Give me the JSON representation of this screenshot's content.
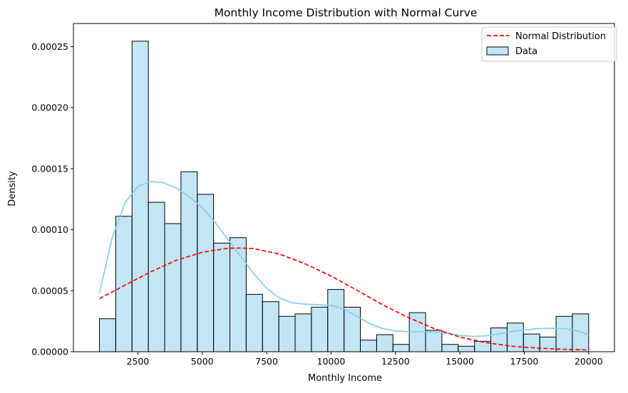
{
  "chart_data": {
    "type": "bar",
    "title": "Monthly Income Distribution with Normal Curve",
    "xlabel": "Monthly Income",
    "ylabel": "Density",
    "xlim": [
      0,
      21000
    ],
    "ylim": [
      0,
      0.000269
    ],
    "x_ticks": [
      2500,
      5000,
      7500,
      10000,
      12500,
      15000,
      17500,
      20000
    ],
    "y_ticks": [
      0,
      5e-05,
      0.0001,
      0.00015,
      0.0002,
      0.00025
    ],
    "y_tick_labels": [
      "0.00000",
      "0.00005",
      "0.00010",
      "0.00015",
      "0.00020",
      "0.00025"
    ],
    "grid": false,
    "legend_position": "top-right",
    "histogram": {
      "name": "Data",
      "color": "#87ceeb",
      "edge_color": "#000000",
      "bin_start": 1009,
      "bin_width": 633,
      "values": [
        2.7e-05,
        0.000111,
        0.0002545,
        0.0001225,
        0.000105,
        0.0001475,
        0.000129,
        8.9e-05,
        9.35e-05,
        4.7e-05,
        4.1e-05,
        2.9e-05,
        3.1e-05,
        3.65e-05,
        5.1e-05,
        3.65e-05,
        9.5e-06,
        1.4e-05,
        6e-06,
        3.2e-05,
        1.75e-05,
        6e-06,
        4.5e-06,
        8.5e-06,
        1.95e-05,
        2.35e-05,
        1.45e-05,
        1.2e-05,
        2.9e-05,
        3.1e-05
      ]
    },
    "kde": {
      "color": "#87ceeb",
      "x": [
        1009,
        1500,
        2000,
        2500,
        3000,
        3500,
        4000,
        4500,
        5000,
        5500,
        6000,
        6500,
        7000,
        7500,
        8000,
        8500,
        9000,
        9500,
        10000,
        10500,
        11000,
        11500,
        12000,
        12500,
        13000,
        13500,
        14000,
        14500,
        15000,
        15500,
        16000,
        16500,
        17000,
        17500,
        18000,
        18500,
        19000,
        19500,
        20000
      ],
      "y": [
        4.8e-05,
        9.3e-05,
        0.000122,
        0.0001355,
        0.0001395,
        0.0001385,
        0.000134,
        0.000127,
        0.000118,
        0.000106,
        9.2e-05,
        7.8e-05,
        6.4e-05,
        5.2e-05,
        4.4e-05,
        4e-05,
        3.9e-05,
        3.85e-05,
        3.8e-05,
        3.5e-05,
        2.9e-05,
        2.3e-05,
        1.9e-05,
        1.7e-05,
        1.65e-05,
        1.63e-05,
        1.6e-05,
        1.5e-05,
        1.35e-05,
        1.25e-05,
        1.3e-05,
        1.45e-05,
        1.65e-05,
        1.78e-05,
        1.88e-05,
        1.92e-05,
        1.9e-05,
        1.75e-05,
        1.4e-05
      ]
    },
    "normal_curve": {
      "name": "Normal Distribution",
      "color": "#ff0000",
      "line_style": "dashed",
      "x": [
        1009,
        2000,
        3000,
        4000,
        5000,
        6000,
        6500,
        7000,
        8000,
        9000,
        10000,
        11000,
        12000,
        13000,
        14000,
        15000,
        16000,
        17000,
        18000,
        19000,
        20000
      ],
      "y": [
        4.35e-05,
        5.45e-05,
        6.55e-05,
        7.5e-05,
        8.15e-05,
        8.48e-05,
        8.5e-05,
        8.45e-05,
        8e-05,
        7.2e-05,
        6.2e-05,
        5.05e-05,
        3.85e-05,
        2.8e-05,
        1.9e-05,
        1.2e-05,
        7.5e-06,
        4.5e-06,
        3e-06,
        2e-06,
        1.5e-06
      ]
    }
  }
}
